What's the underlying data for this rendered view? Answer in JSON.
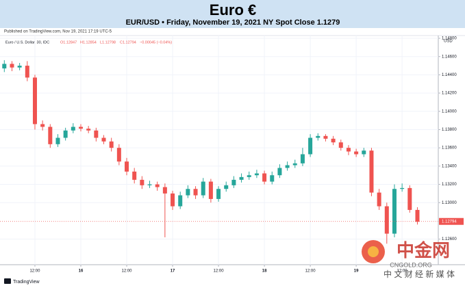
{
  "header": {
    "title": "Euro €",
    "subtitle": "EUR/USD • Friday, November 19, 2021 NY Spot Close 1.1279",
    "published": "Published on TradingView.com, Nov 19, 2021 17:19 UTC-5"
  },
  "chart_data": {
    "type": "candlestick",
    "symbol": "Euro / U.S. Dollar, 30, IDC",
    "ohlc_labels": [
      "O1.12847",
      "H1.12854",
      "L1.12798",
      "C1.12794",
      "−0.00045 (−0.04%)"
    ],
    "y_unit": "USD",
    "up_color": "#26a69a",
    "down_color": "#ef5350",
    "categories": [
      null,
      null,
      null,
      null,
      null,
      null,
      null,
      null,
      null,
      null,
      null,
      null,
      null,
      null,
      null,
      null,
      null,
      null,
      null,
      null,
      null,
      null,
      null,
      null,
      null,
      null,
      null,
      null,
      null,
      null,
      null,
      null,
      null,
      null,
      null,
      null,
      null,
      null,
      null,
      null,
      null,
      null,
      null,
      null,
      null,
      null,
      null,
      null,
      null,
      null,
      null,
      null,
      null,
      null,
      null
    ],
    "open": [
      1.1447,
      1.1452,
      1.1448,
      1.145,
      1.1437,
      1.1386,
      1.1383,
      1.1364,
      1.1371,
      1.1379,
      1.1383,
      1.1381,
      1.1379,
      1.1371,
      1.1367,
      1.136,
      1.1345,
      1.1334,
      1.1325,
      1.1319,
      1.132,
      1.1317,
      1.131,
      1.1296,
      1.1308,
      1.1315,
      1.1308,
      1.1323,
      1.1304,
      1.1315,
      1.1319,
      1.1325,
      1.1328,
      1.133,
      1.1332,
      1.1323,
      1.133,
      1.1338,
      1.1341,
      1.1343,
      1.1353,
      1.1371,
      1.1373,
      1.137,
      1.1366,
      1.136,
      1.1356,
      1.1353,
      1.1357,
      1.1311,
      1.1296,
      1.1266,
      1.1315,
      1.1316,
      1.1292
    ],
    "high": [
      1.1456,
      1.1455,
      1.1453,
      1.1455,
      1.144,
      1.139,
      1.1386,
      1.1375,
      1.1382,
      1.1387,
      1.1386,
      1.1384,
      1.1382,
      1.1374,
      1.1371,
      1.1364,
      1.1349,
      1.1338,
      1.1329,
      1.1324,
      1.1323,
      1.1321,
      1.1313,
      1.1312,
      1.1319,
      1.1318,
      1.1327,
      1.1326,
      1.1318,
      1.1323,
      1.1329,
      1.1332,
      1.1334,
      1.1336,
      1.1335,
      1.1334,
      1.1342,
      1.1345,
      1.1347,
      1.136,
      1.1375,
      1.1376,
      1.1375,
      1.1373,
      1.1369,
      1.1363,
      1.1359,
      1.136,
      1.136,
      1.1315,
      1.13,
      1.132,
      1.1321,
      1.1319,
      1.1295
    ],
    "low": [
      1.1443,
      1.1444,
      1.1445,
      1.1433,
      1.138,
      1.1379,
      1.136,
      1.1361,
      1.1368,
      1.1376,
      1.1378,
      1.1376,
      1.1367,
      1.1364,
      1.1356,
      1.1341,
      1.133,
      1.1321,
      1.1315,
      1.1316,
      1.1313,
      1.1262,
      1.1292,
      1.1293,
      1.1305,
      1.1304,
      1.1305,
      1.13,
      1.1301,
      1.1312,
      1.1316,
      1.1322,
      1.1325,
      1.1327,
      1.132,
      1.132,
      1.1327,
      1.1335,
      1.1338,
      1.134,
      1.135,
      1.1368,
      1.1367,
      1.1363,
      1.1357,
      1.1352,
      1.135,
      1.135,
      1.1307,
      1.1292,
      1.1255,
      1.1262,
      1.1312,
      1.1289,
      1.1276
    ],
    "close": [
      1.1452,
      1.1448,
      1.145,
      1.1437,
      1.1386,
      1.1383,
      1.1364,
      1.1371,
      1.1379,
      1.1383,
      1.1381,
      1.1379,
      1.1371,
      1.1367,
      1.136,
      1.1345,
      1.1334,
      1.1325,
      1.1319,
      1.132,
      1.1317,
      1.131,
      1.1296,
      1.1308,
      1.1315,
      1.1308,
      1.1323,
      1.1304,
      1.1315,
      1.1319,
      1.1325,
      1.1328,
      1.133,
      1.1332,
      1.1323,
      1.133,
      1.1338,
      1.1341,
      1.1343,
      1.1353,
      1.1371,
      1.1373,
      1.137,
      1.1366,
      1.136,
      1.1356,
      1.1353,
      1.1357,
      1.1311,
      1.1296,
      1.1266,
      1.1315,
      1.1316,
      1.1292,
      1.1279
    ],
    "last_price": {
      "value": 1.12794,
      "label": "1.12794"
    },
    "ylim": [
      1.1232,
      1.1483
    ],
    "yticks": [
      {
        "value": 1.148,
        "label": "1.14800"
      },
      {
        "value": 1.146,
        "label": "1.14600"
      },
      {
        "value": 1.144,
        "label": "1.14400"
      },
      {
        "value": 1.142,
        "label": "1.14200"
      },
      {
        "value": 1.14,
        "label": "1.14000"
      },
      {
        "value": 1.138,
        "label": "1.13800"
      },
      {
        "value": 1.136,
        "label": "1.13600"
      },
      {
        "value": 1.134,
        "label": "1.13400"
      },
      {
        "value": 1.132,
        "label": "1.13200"
      },
      {
        "value": 1.13,
        "label": "1.13000"
      },
      {
        "value": 1.126,
        "label": "1.12600"
      }
    ],
    "xticks": [
      {
        "value": 4,
        "label": "12:00"
      },
      {
        "value": 10,
        "label": "16"
      },
      {
        "value": 16,
        "label": "12:00"
      },
      {
        "value": 22,
        "label": "17"
      },
      {
        "value": 28,
        "label": "12:00"
      },
      {
        "value": 34,
        "label": "18"
      },
      {
        "value": 40,
        "label": "12:00"
      },
      {
        "value": 46,
        "label": "19"
      },
      {
        "value": 52,
        "label": "12:00"
      }
    ],
    "grid": true
  },
  "watermark": {
    "name": "中金网",
    "site": "CNGOLD.ORG",
    "tagline": "中 文 财 经 新 媒 体"
  },
  "footer": {
    "brand": "TradingView"
  }
}
